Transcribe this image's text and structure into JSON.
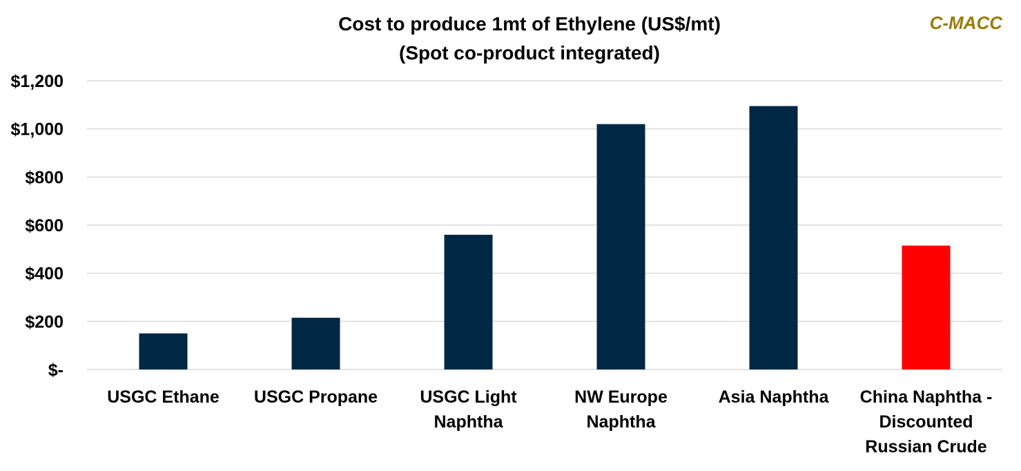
{
  "chart_data": {
    "type": "bar",
    "title_lines": [
      "Cost to produce 1mt of Ethylene (US$/mt)",
      "(Spot co-product integrated)"
    ],
    "brand": "C-MACC",
    "categories": [
      [
        "USGC Ethane"
      ],
      [
        "USGC Propane"
      ],
      [
        "USGC Light",
        "Naphtha"
      ],
      [
        "NW Europe",
        "Naphtha"
      ],
      [
        "Asia Naphtha"
      ],
      [
        "China Naphtha -",
        "Discounted",
        "Russian Crude"
      ]
    ],
    "values": [
      150,
      215,
      560,
      1020,
      1095,
      515
    ],
    "bar_colors": [
      "#002845",
      "#002845",
      "#002845",
      "#002845",
      "#002845",
      "#ff0000"
    ],
    "brand_color": "#9a7a0a",
    "ylim": [
      0,
      1200
    ],
    "yticks": [
      0,
      200,
      400,
      600,
      800,
      1000,
      1200
    ],
    "ytick_labels": [
      "$-",
      "$200",
      "$400",
      "$600",
      "$800",
      "$1,000",
      "$1,200"
    ],
    "xlabel": "",
    "ylabel": "",
    "grid": true,
    "legend": "none"
  }
}
